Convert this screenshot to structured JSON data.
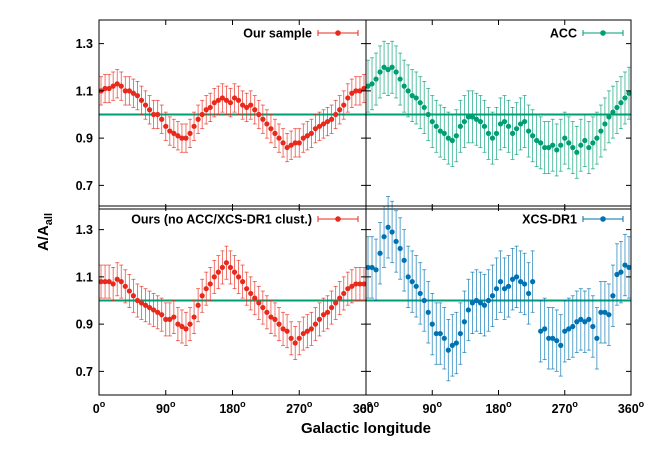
{
  "figure": {
    "ylabel": "A/A",
    "ylabel_sub": "all",
    "xlabel": "Galactic longitude",
    "x_ticks": [
      "0",
      "90",
      "180",
      "270",
      "360"
    ],
    "y_ticks": [
      "0.7",
      "0.9",
      "1.1",
      "1.3"
    ]
  },
  "chart_data": [
    {
      "type": "scatter",
      "panel": "top-left",
      "legend": "Our sample",
      "color": "#e8291c",
      "err": 0.06,
      "xlim": [
        0,
        360
      ],
      "ylim": [
        0.6,
        1.4
      ],
      "ticks_x": [
        0,
        90,
        180,
        270,
        360
      ],
      "ticks_y": [
        0.7,
        0.9,
        1.1,
        1.3
      ],
      "reference_line": 1.0,
      "values": [
        1.1,
        1.11,
        1.11,
        1.12,
        1.13,
        1.12,
        1.1,
        1.1,
        1.09,
        1.08,
        1.06,
        1.04,
        1.02,
        1.0,
        1.0,
        0.98,
        0.95,
        0.93,
        0.92,
        0.91,
        0.9,
        0.9,
        0.92,
        0.95,
        0.98,
        1.0,
        1.02,
        1.03,
        1.05,
        1.06,
        1.07,
        1.06,
        1.05,
        1.07,
        1.06,
        1.04,
        1.03,
        1.04,
        1.02,
        1.0,
        0.98,
        0.96,
        0.94,
        0.92,
        0.9,
        0.88,
        0.86,
        0.87,
        0.88,
        0.88,
        0.9,
        0.91,
        0.92,
        0.94,
        0.95,
        0.96,
        0.97,
        0.98,
        1.0,
        1.02,
        1.04,
        1.07,
        1.09,
        1.1,
        1.1,
        1.11
      ]
    },
    {
      "type": "scatter",
      "panel": "top-right",
      "legend": "ACC",
      "color": "#009e73",
      "err": 0.11,
      "xlim": [
        0,
        360
      ],
      "ylim": [
        0.6,
        1.4
      ],
      "ticks_x": [
        0,
        90,
        180,
        270,
        360
      ],
      "ticks_y": [
        0.7,
        0.9,
        1.1,
        1.3
      ],
      "reference_line": 1.0,
      "values": [
        1.12,
        1.13,
        1.15,
        1.18,
        1.2,
        1.19,
        1.2,
        1.18,
        1.15,
        1.12,
        1.1,
        1.08,
        1.07,
        1.05,
        1.03,
        1.0,
        0.97,
        0.95,
        0.93,
        0.92,
        0.9,
        0.89,
        0.91,
        0.95,
        0.97,
        0.99,
        0.99,
        0.98,
        0.97,
        0.95,
        0.92,
        0.9,
        0.92,
        0.96,
        0.97,
        0.95,
        0.92,
        0.94,
        0.96,
        0.97,
        0.93,
        0.91,
        0.89,
        0.88,
        0.86,
        0.86,
        0.87,
        0.85,
        0.87,
        0.9,
        0.88,
        0.86,
        0.84,
        0.87,
        0.89,
        0.86,
        0.88,
        0.9,
        0.93,
        0.96,
        0.99,
        1.01,
        1.03,
        1.05,
        1.07,
        1.09
      ]
    },
    {
      "type": "scatter",
      "panel": "bottom-left",
      "legend": "Ours (no ACC/XCS-DR1 clust.)",
      "color": "#e8291c",
      "err": 0.07,
      "xlim": [
        0,
        360
      ],
      "ylim": [
        0.6,
        1.4
      ],
      "ticks_x": [
        0,
        90,
        180,
        270,
        360
      ],
      "ticks_y": [
        0.7,
        0.9,
        1.1,
        1.3
      ],
      "reference_line": 1.0,
      "values": [
        1.08,
        1.08,
        1.08,
        1.07,
        1.09,
        1.08,
        1.06,
        1.04,
        1.02,
        1.0,
        0.99,
        0.98,
        0.97,
        0.96,
        0.95,
        0.94,
        0.92,
        0.92,
        0.93,
        0.9,
        0.89,
        0.88,
        0.9,
        0.93,
        0.98,
        1.02,
        1.05,
        1.07,
        1.1,
        1.12,
        1.14,
        1.16,
        1.14,
        1.12,
        1.1,
        1.08,
        1.05,
        1.03,
        1.01,
        0.99,
        0.97,
        0.95,
        0.93,
        0.92,
        0.9,
        0.88,
        0.87,
        0.84,
        0.82,
        0.84,
        0.86,
        0.87,
        0.88,
        0.9,
        0.92,
        0.94,
        0.95,
        0.97,
        0.99,
        1.01,
        1.03,
        1.05,
        1.06,
        1.07,
        1.07,
        1.07
      ]
    },
    {
      "type": "scatter",
      "panel": "bottom-right",
      "legend": "XCS-DR1",
      "color": "#0072b2",
      "err": 0.13,
      "xlim": [
        0,
        360
      ],
      "ylim": [
        0.6,
        1.4
      ],
      "ticks_x": [
        0,
        90,
        180,
        270,
        360
      ],
      "ticks_y": [
        0.7,
        0.9,
        1.1,
        1.3
      ],
      "reference_line": 1.0,
      "values": [
        1.14,
        1.14,
        1.13,
        1.2,
        1.27,
        1.31,
        1.29,
        1.25,
        1.22,
        1.17,
        1.1,
        1.08,
        1.06,
        1.03,
        1.0,
        0.95,
        0.9,
        0.86,
        0.86,
        0.84,
        0.79,
        0.81,
        0.82,
        0.86,
        0.91,
        0.96,
        0.99,
        1.0,
        0.99,
        0.98,
        1.0,
        1.02,
        1.05,
        1.08,
        1.05,
        1.06,
        1.09,
        1.1,
        1.08,
        1.07,
        1.03,
        1.08,
        null,
        0.87,
        0.88,
        0.84,
        0.84,
        0.83,
        0.81,
        0.87,
        0.88,
        0.89,
        0.91,
        0.92,
        0.91,
        0.92,
        0.89,
        0.84,
        0.95,
        0.95,
        0.94,
        1.02,
        1.11,
        1.12,
        1.15,
        1.14
      ]
    }
  ]
}
